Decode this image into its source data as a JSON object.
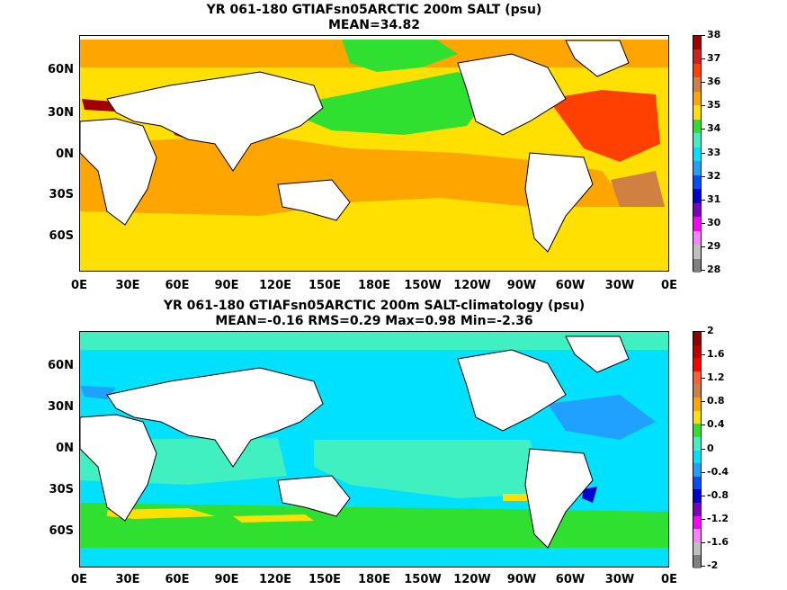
{
  "panels": [
    {
      "title_line1": "YR 061-180 GTIAFsn05ARCTIC 200m SALT (psu)",
      "title_line2": "MEAN=34.82",
      "colorbar": {
        "labels": [
          "38",
          "37",
          "36",
          "35",
          "34",
          "33",
          "32",
          "31",
          "30",
          "29",
          "28"
        ],
        "colors": [
          "#a00000",
          "#d02020",
          "#ff4000",
          "#d08040",
          "#ffa500",
          "#ffe000",
          "#30e030",
          "#40f0c0",
          "#00e0ff",
          "#20a0ff",
          "#0050ff",
          "#0000d0",
          "#8000c0",
          "#ff00ff",
          "#ff80ff",
          "#c0c0c0",
          "#808080"
        ]
      }
    },
    {
      "title_line1": "YR 061-180 GTIAFsn05ARCTIC 200m SALT-climatology (psu)",
      "title_line2": "MEAN=-0.16   RMS=0.29   Max=0.98   Min=-2.36",
      "colorbar": {
        "labels": [
          "2",
          "1.6",
          "1.2",
          "0.8",
          "0.4",
          "0",
          "-0.4",
          "-0.8",
          "-1.2",
          "-1.6",
          "-2"
        ],
        "colors": [
          "#900000",
          "#c00000",
          "#ff0000",
          "#ff6030",
          "#d08040",
          "#ffa500",
          "#ffe000",
          "#30e030",
          "#40f0c0",
          "#00e0ff",
          "#20a0ff",
          "#0050ff",
          "#0000d0",
          "#8000c0",
          "#ff00ff",
          "#ff80ff",
          "#c0c0c0",
          "#808080"
        ]
      }
    }
  ],
  "axes": {
    "lat_labels": [
      "60N",
      "30N",
      "0N",
      "30S",
      "60S"
    ],
    "lon_labels": [
      "0E",
      "30E",
      "60E",
      "90E",
      "120E",
      "150E",
      "180E",
      "150W",
      "120W",
      "90W",
      "60W",
      "30W",
      "0E"
    ]
  }
}
